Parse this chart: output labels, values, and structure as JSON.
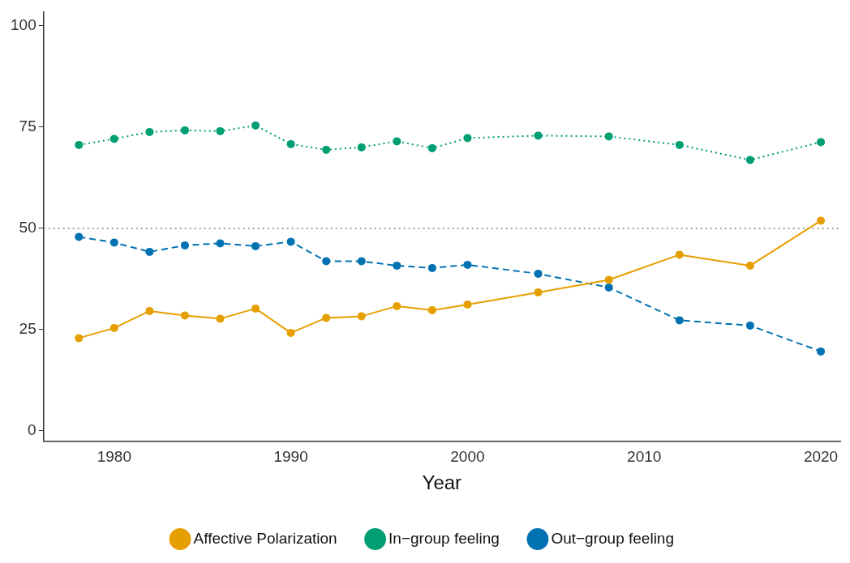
{
  "chart_data": {
    "type": "line",
    "xlabel": "Year",
    "x": [
      1978,
      1980,
      1982,
      1984,
      1986,
      1988,
      1990,
      1992,
      1994,
      1996,
      1998,
      2000,
      2004,
      2008,
      2012,
      2016,
      2020
    ],
    "series": [
      {
        "name": "Affective Polarization",
        "color": "#e69f00",
        "line_style": "solid",
        "values": [
          22.9,
          25.4,
          29.6,
          28.5,
          27.7,
          30.2,
          24.2,
          27.9,
          28.3,
          30.8,
          29.8,
          31.2,
          34.2,
          37.3,
          43.5,
          40.8,
          51.9
        ]
      },
      {
        "name": "In−group feeling",
        "color": "#009e73",
        "line_style": "dotted",
        "values": [
          70.6,
          72.1,
          73.8,
          74.2,
          74.0,
          75.4,
          70.8,
          69.4,
          70.0,
          71.5,
          69.8,
          72.3,
          72.9,
          72.7,
          70.6,
          66.9,
          71.3
        ]
      },
      {
        "name": "Out−group feeling",
        "color": "#0072b2",
        "line_style": "dashed",
        "values": [
          47.9,
          46.5,
          44.2,
          45.8,
          46.3,
          45.6,
          46.7,
          41.9,
          41.9,
          40.8,
          40.2,
          41.0,
          38.8,
          35.4,
          27.3,
          26.0,
          19.6
        ]
      }
    ],
    "xlim": [
      1976,
      2021.1
    ],
    "xticks": [
      1980,
      1990,
      2000,
      2010,
      2020
    ],
    "ylim": [
      -2.5,
      103.5
    ],
    "yticks": [
      0,
      25,
      50,
      75,
      100
    ],
    "ref_lines": [
      {
        "axis": "y",
        "value": 50,
        "color": "#808080",
        "line_style": "dotted"
      }
    ],
    "grid": false,
    "legend": "bottom",
    "marker": "circle"
  }
}
